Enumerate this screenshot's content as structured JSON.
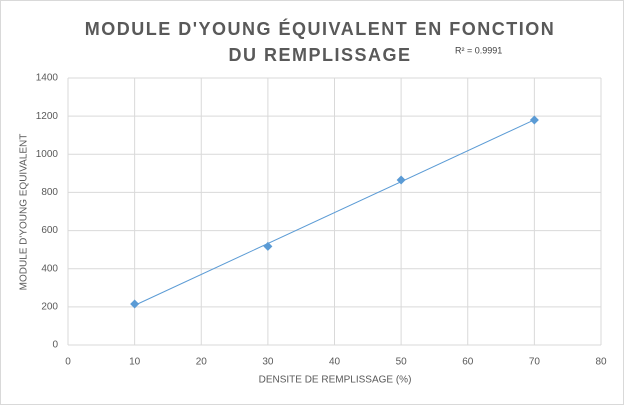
{
  "chart_data": {
    "type": "scatter",
    "title": [
      "MODULE D'YOUNG ÉQUIVALENT EN FONCTION",
      "DU REMPLISSAGE"
    ],
    "annotation": "R² = 0.9991",
    "x_label": "DENSITE DE REMPLISSAGE (%)",
    "y_label": "MODULE D'YOUNG EQUIVALENT",
    "x": [
      10,
      30,
      50,
      70
    ],
    "series": [
      {
        "color": "#5b9bd5",
        "values": [
          215,
          517,
          865,
          1180
        ]
      }
    ],
    "trendline": "linear",
    "xlim": [
      0,
      80
    ],
    "xticks": [
      0,
      10,
      20,
      30,
      40,
      50,
      60,
      70,
      80
    ],
    "ylim": [
      0,
      1400
    ],
    "yticks": [
      0,
      200,
      400,
      600,
      800,
      1000,
      1200,
      1400
    ],
    "grid": true
  }
}
